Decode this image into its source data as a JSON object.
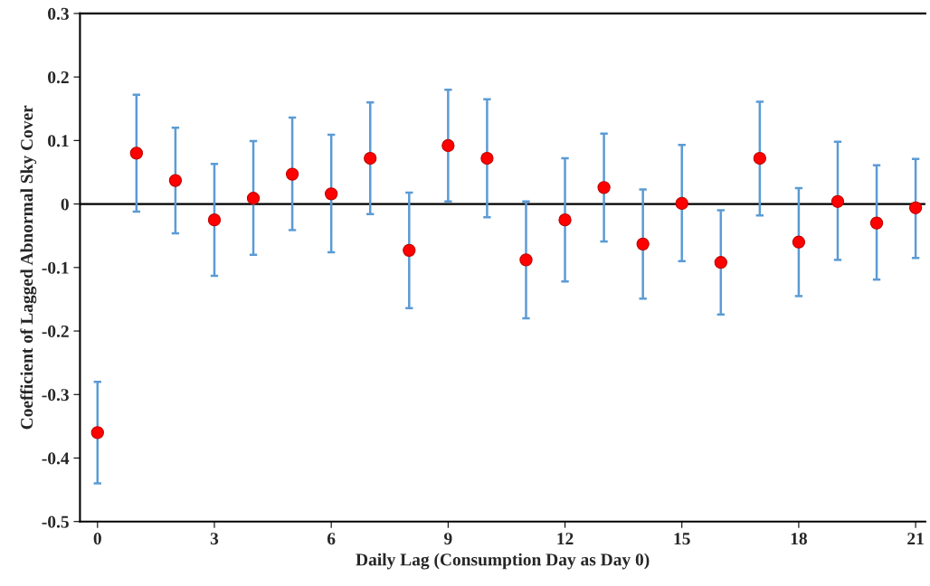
{
  "chart_data": {
    "type": "scatter",
    "xlabel": "Daily Lag (Consumption Day as Day 0)",
    "ylabel": "Coefficient of Lagged Abnormal Sky Cover",
    "x": [
      0,
      1,
      2,
      3,
      4,
      5,
      6,
      7,
      8,
      9,
      10,
      11,
      12,
      13,
      14,
      15,
      16,
      17,
      18,
      19,
      20,
      21
    ],
    "values": [
      -0.36,
      0.08,
      0.037,
      -0.025,
      0.009,
      0.047,
      0.016,
      0.072,
      -0.073,
      0.092,
      0.072,
      -0.088,
      -0.025,
      0.026,
      -0.063,
      0.001,
      -0.092,
      0.072,
      -0.06,
      0.004,
      -0.03,
      -0.006
    ],
    "errors": [
      [
        -0.44,
        -0.28
      ],
      [
        -0.012,
        0.172
      ],
      [
        -0.046,
        0.12
      ],
      [
        -0.113,
        0.063
      ],
      [
        -0.08,
        0.099
      ],
      [
        -0.041,
        0.136
      ],
      [
        -0.076,
        0.109
      ],
      [
        -0.016,
        0.16
      ],
      [
        -0.164,
        0.018
      ],
      [
        0.004,
        0.18
      ],
      [
        -0.021,
        0.165
      ],
      [
        -0.18,
        0.004
      ],
      [
        -0.122,
        0.072
      ],
      [
        -0.059,
        0.111
      ],
      [
        -0.149,
        0.023
      ],
      [
        -0.09,
        0.093
      ],
      [
        -0.174,
        -0.01
      ],
      [
        -0.018,
        0.161
      ],
      [
        -0.145,
        0.025
      ],
      [
        -0.088,
        0.098
      ],
      [
        -0.119,
        0.061
      ],
      [
        -0.085,
        0.071
      ]
    ],
    "color": "#ff0000",
    "marker": "circle",
    "xlim": [
      -0.45,
      21.25
    ],
    "xticks": [
      0,
      3,
      6,
      9,
      12,
      15,
      18,
      21
    ],
    "ylim": [
      -0.5,
      0.3
    ],
    "yticks": [
      -0.5,
      -0.4,
      -0.3,
      -0.2,
      -0.1,
      0,
      0.1,
      0.2,
      0.3
    ],
    "ref_lines": [
      {
        "axis": "y",
        "value": 0,
        "color": "#000000"
      }
    ],
    "grid": false,
    "legend": false
  }
}
